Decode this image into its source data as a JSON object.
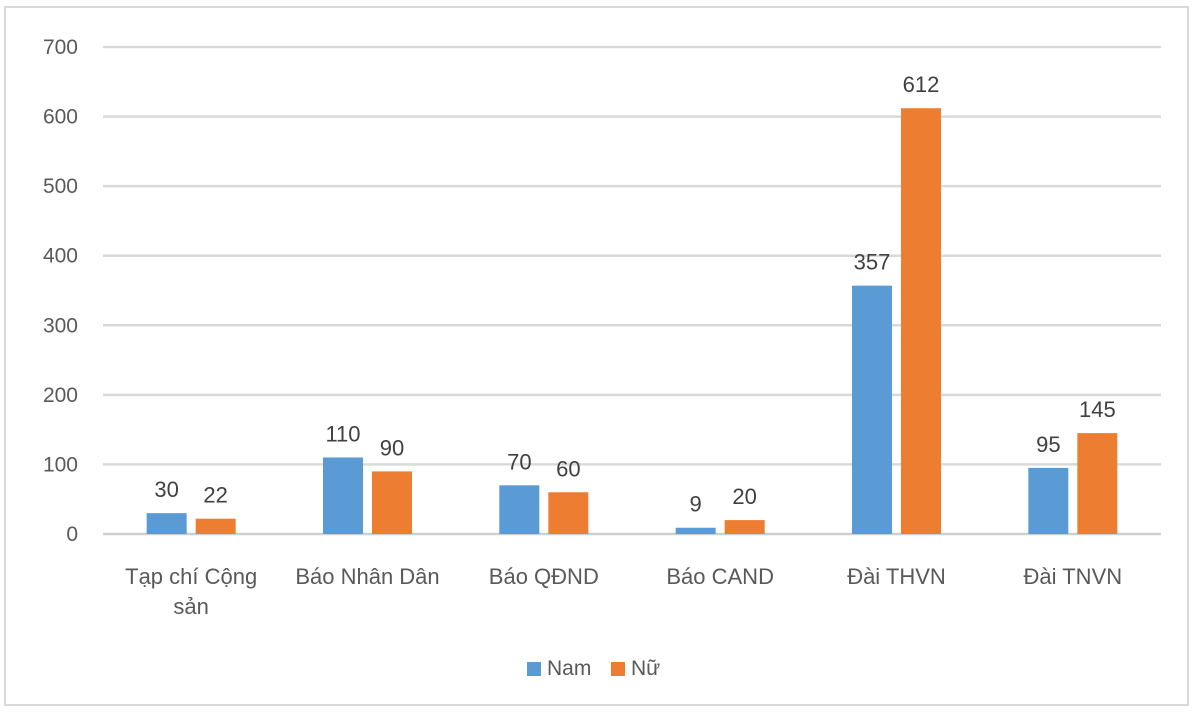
{
  "chart_data": {
    "type": "bar",
    "categories": [
      [
        "Tạp chí Cộng",
        "sản"
      ],
      [
        "Báo Nhân Dân"
      ],
      [
        "Báo QĐND"
      ],
      [
        "Báo CAND"
      ],
      [
        "Đài THVN"
      ],
      [
        "Đài TNVN"
      ]
    ],
    "series": [
      {
        "name": "Nam",
        "color": "#5b9bd5",
        "values": [
          30,
          110,
          70,
          9,
          357,
          95
        ]
      },
      {
        "name": "Nữ",
        "color": "#ed7d31",
        "values": [
          22,
          90,
          60,
          20,
          612,
          145
        ]
      }
    ],
    "yticks": [
      0,
      100,
      200,
      300,
      400,
      500,
      600,
      700
    ],
    "ylim": [
      0,
      700
    ],
    "grid": true,
    "legend_position": "bottom"
  }
}
